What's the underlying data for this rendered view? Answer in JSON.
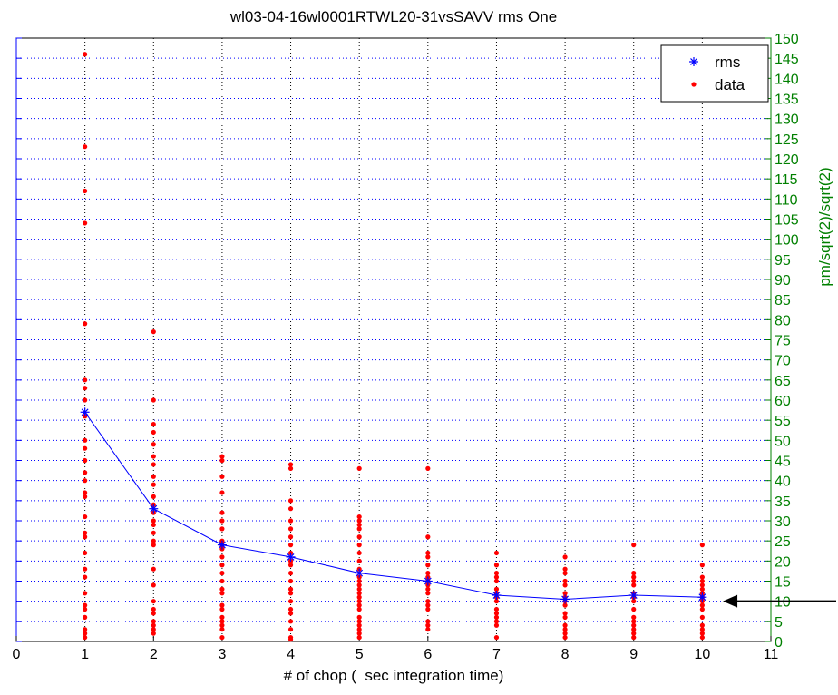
{
  "chart_data": {
    "type": "scatter",
    "title": "wl03-04-16wl0001RTWL20-31vsSAVV rms One",
    "xlabel": "# of chop (  sec integration time)",
    "ylabel_right": "pm/sqrt(2)/sqrt(2)",
    "xlim": [
      0,
      11
    ],
    "ylim": [
      0,
      150
    ],
    "x_ticks": [
      0,
      1,
      2,
      3,
      4,
      5,
      6,
      7,
      8,
      9,
      10,
      11
    ],
    "y_ticks": [
      0,
      5,
      10,
      15,
      20,
      25,
      30,
      35,
      40,
      45,
      50,
      55,
      60,
      65,
      70,
      75,
      80,
      85,
      90,
      95,
      100,
      105,
      110,
      115,
      120,
      125,
      130,
      135,
      140,
      145,
      150
    ],
    "grid": true,
    "legend_position": "top-right",
    "colors": {
      "rms": "#0000ff",
      "data": "#ff0000",
      "right_axis": "#008000",
      "left_axis": "#0000ff",
      "annotation": "#000000"
    },
    "series": [
      {
        "name": "rms",
        "marker": "star-line",
        "x": [
          1,
          2,
          3,
          4,
          5,
          6,
          7,
          8,
          9,
          10
        ],
        "y": [
          57,
          33,
          24,
          21,
          17,
          15,
          11.5,
          10.5,
          11.5,
          11
        ]
      },
      {
        "name": "data",
        "marker": "dot",
        "points": [
          [
            1,
            146
          ],
          [
            1,
            123
          ],
          [
            1,
            112
          ],
          [
            1,
            104
          ],
          [
            1,
            79
          ],
          [
            1,
            65
          ],
          [
            1,
            63
          ],
          [
            1,
            60
          ],
          [
            1,
            56
          ],
          [
            1,
            50
          ],
          [
            1,
            48
          ],
          [
            1,
            45
          ],
          [
            1,
            42
          ],
          [
            1,
            40
          ],
          [
            1,
            37
          ],
          [
            1,
            36
          ],
          [
            1,
            31
          ],
          [
            1,
            27
          ],
          [
            1,
            26
          ],
          [
            1,
            22
          ],
          [
            1,
            18
          ],
          [
            1,
            16
          ],
          [
            1,
            12
          ],
          [
            1,
            9
          ],
          [
            1,
            8
          ],
          [
            1,
            6
          ],
          [
            1,
            3
          ],
          [
            1,
            2
          ],
          [
            1,
            1
          ],
          [
            2,
            77
          ],
          [
            2,
            60
          ],
          [
            2,
            54
          ],
          [
            2,
            52
          ],
          [
            2,
            49
          ],
          [
            2,
            46
          ],
          [
            2,
            44
          ],
          [
            2,
            41
          ],
          [
            2,
            39
          ],
          [
            2,
            36
          ],
          [
            2,
            34
          ],
          [
            2,
            32
          ],
          [
            2,
            30
          ],
          [
            2,
            29
          ],
          [
            2,
            27
          ],
          [
            2,
            25
          ],
          [
            2,
            24
          ],
          [
            2,
            18
          ],
          [
            2,
            14
          ],
          [
            2,
            10
          ],
          [
            2,
            8
          ],
          [
            2,
            7
          ],
          [
            2,
            5
          ],
          [
            2,
            4
          ],
          [
            2,
            3
          ],
          [
            2,
            2
          ],
          [
            3,
            46
          ],
          [
            3,
            45
          ],
          [
            3,
            41
          ],
          [
            3,
            37
          ],
          [
            3,
            32
          ],
          [
            3,
            30
          ],
          [
            3,
            28
          ],
          [
            3,
            25
          ],
          [
            3,
            24
          ],
          [
            3,
            23
          ],
          [
            3,
            21
          ],
          [
            3,
            19
          ],
          [
            3,
            17
          ],
          [
            3,
            15
          ],
          [
            3,
            13
          ],
          [
            3,
            12
          ],
          [
            3,
            9
          ],
          [
            3,
            8
          ],
          [
            3,
            6
          ],
          [
            3,
            5
          ],
          [
            3,
            4
          ],
          [
            3,
            3
          ],
          [
            3,
            1
          ],
          [
            4,
            44
          ],
          [
            4,
            43
          ],
          [
            4,
            35
          ],
          [
            4,
            33
          ],
          [
            4,
            30
          ],
          [
            4,
            28
          ],
          [
            4,
            26
          ],
          [
            4,
            24
          ],
          [
            4,
            22
          ],
          [
            4,
            20
          ],
          [
            4,
            19
          ],
          [
            4,
            17
          ],
          [
            4,
            15
          ],
          [
            4,
            13
          ],
          [
            4,
            12
          ],
          [
            4,
            10
          ],
          [
            4,
            8
          ],
          [
            4,
            7
          ],
          [
            4,
            5
          ],
          [
            4,
            3
          ],
          [
            4,
            1
          ],
          [
            4,
            0.5
          ],
          [
            5,
            43
          ],
          [
            5,
            31
          ],
          [
            5,
            30
          ],
          [
            5,
            29
          ],
          [
            5,
            28
          ],
          [
            5,
            26
          ],
          [
            5,
            24
          ],
          [
            5,
            22
          ],
          [
            5,
            20
          ],
          [
            5,
            18
          ],
          [
            5,
            16
          ],
          [
            5,
            15
          ],
          [
            5,
            14
          ],
          [
            5,
            13
          ],
          [
            5,
            12
          ],
          [
            5,
            11
          ],
          [
            5,
            10
          ],
          [
            5,
            9
          ],
          [
            5,
            8
          ],
          [
            5,
            6
          ],
          [
            5,
            5
          ],
          [
            5,
            4
          ],
          [
            5,
            3
          ],
          [
            5,
            2
          ],
          [
            5,
            1
          ],
          [
            6,
            43
          ],
          [
            6,
            26
          ],
          [
            6,
            22
          ],
          [
            6,
            21
          ],
          [
            6,
            19
          ],
          [
            6,
            17
          ],
          [
            6,
            16
          ],
          [
            6,
            15
          ],
          [
            6,
            14
          ],
          [
            6,
            13
          ],
          [
            6,
            12
          ],
          [
            6,
            10
          ],
          [
            6,
            9
          ],
          [
            6,
            8
          ],
          [
            6,
            5
          ],
          [
            6,
            4
          ],
          [
            6,
            3
          ],
          [
            7,
            22
          ],
          [
            7,
            19
          ],
          [
            7,
            17
          ],
          [
            7,
            16
          ],
          [
            7,
            15
          ],
          [
            7,
            13
          ],
          [
            7,
            12
          ],
          [
            7,
            11
          ],
          [
            7,
            10
          ],
          [
            7,
            8
          ],
          [
            7,
            7
          ],
          [
            7,
            6
          ],
          [
            7,
            5
          ],
          [
            7,
            4
          ],
          [
            7,
            1
          ],
          [
            8,
            21
          ],
          [
            8,
            18
          ],
          [
            8,
            17
          ],
          [
            8,
            15
          ],
          [
            8,
            14
          ],
          [
            8,
            12
          ],
          [
            8,
            11
          ],
          [
            8,
            10
          ],
          [
            8,
            9
          ],
          [
            8,
            7
          ],
          [
            8,
            6
          ],
          [
            8,
            4
          ],
          [
            8,
            3
          ],
          [
            8,
            2
          ],
          [
            8,
            1
          ],
          [
            9,
            24
          ],
          [
            9,
            17
          ],
          [
            9,
            16
          ],
          [
            9,
            15
          ],
          [
            9,
            14
          ],
          [
            9,
            12
          ],
          [
            9,
            11
          ],
          [
            9,
            10
          ],
          [
            9,
            8
          ],
          [
            9,
            6
          ],
          [
            9,
            5
          ],
          [
            9,
            4
          ],
          [
            9,
            3
          ],
          [
            9,
            2
          ],
          [
            9,
            1
          ],
          [
            10,
            24
          ],
          [
            10,
            19
          ],
          [
            10,
            16
          ],
          [
            10,
            15
          ],
          [
            10,
            14
          ],
          [
            10,
            13
          ],
          [
            10,
            12
          ],
          [
            10,
            11
          ],
          [
            10,
            10
          ],
          [
            10,
            9
          ],
          [
            10,
            8
          ],
          [
            10,
            6
          ],
          [
            10,
            4
          ],
          [
            10,
            3
          ],
          [
            10,
            2
          ],
          [
            10,
            1
          ]
        ]
      }
    ],
    "legend": [
      {
        "label": "rms",
        "key": "rms"
      },
      {
        "label": "data",
        "key": "data"
      }
    ],
    "annotations": [
      {
        "type": "arrow",
        "points_to": [
          10.3,
          10
        ]
      }
    ]
  }
}
